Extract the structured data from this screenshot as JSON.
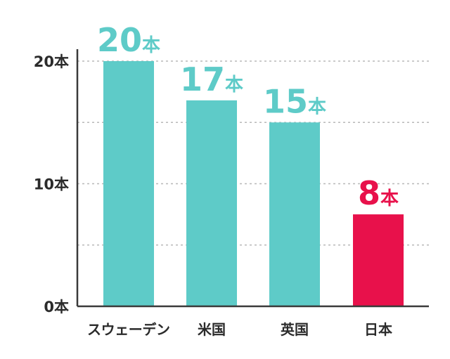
{
  "chart_data": {
    "type": "bar",
    "categories": [
      "スウェーデン",
      "米国",
      "英国",
      "日本"
    ],
    "values": [
      20,
      17,
      15,
      8
    ],
    "data_labels": [
      {
        "number": "20",
        "unit": "本"
      },
      {
        "number": "17",
        "unit": "本"
      },
      {
        "number": "15",
        "unit": "本"
      },
      {
        "number": "8",
        "unit": "本"
      }
    ],
    "bar_values": [
      20,
      16.8,
      15,
      7.5
    ],
    "colors": [
      "#5ecbc8",
      "#5ecbc8",
      "#5ecbc8",
      "#e8114b"
    ],
    "ylim": [
      0,
      20
    ],
    "yticks": [
      {
        "value": 0,
        "label": "0本"
      },
      {
        "value": 10,
        "label": "10本"
      },
      {
        "value": 20,
        "label": "20本"
      }
    ],
    "gridlines": [
      5,
      10,
      15,
      20
    ],
    "grid": true,
    "axis_color": "#3a3a3a",
    "grid_color": "#b8b8b8"
  }
}
